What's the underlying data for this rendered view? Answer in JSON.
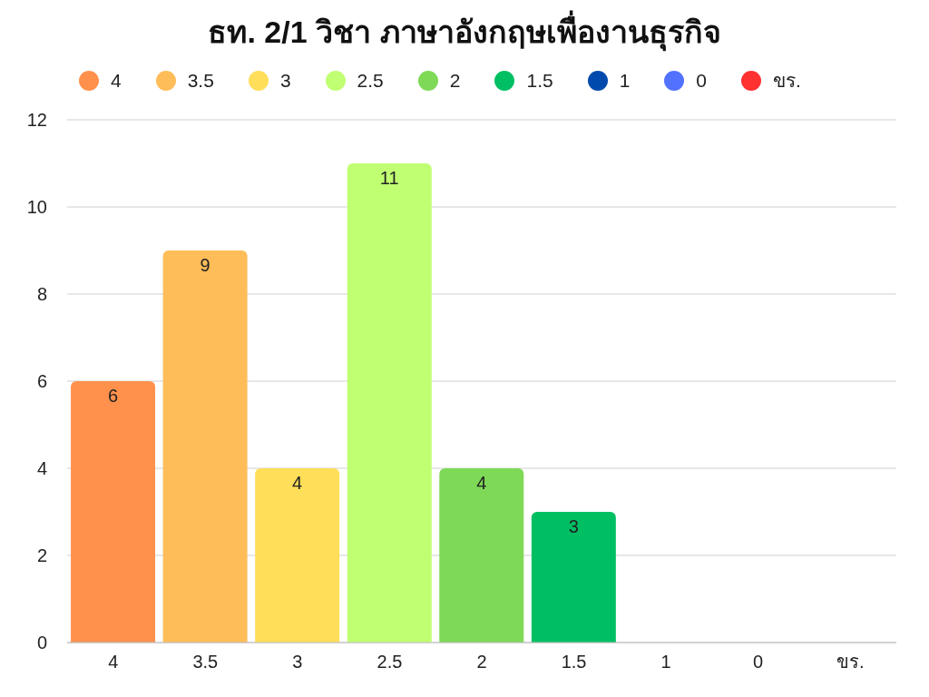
{
  "chart_data": {
    "type": "bar",
    "title": "ธท. 2/1 วิชา ภาษาอังกฤษเพื่องานธุรกิจ",
    "categories": [
      "4",
      "3.5",
      "3",
      "2.5",
      "2",
      "1.5",
      "1",
      "0",
      "ขร."
    ],
    "stacked": true,
    "series": [
      {
        "name": "4",
        "color": "#ff914d",
        "values": [
          6,
          null,
          null,
          null,
          null,
          null,
          null,
          null,
          null
        ],
        "value_labels": [
          "6",
          null,
          null,
          null,
          null,
          null,
          null,
          null,
          null
        ]
      },
      {
        "name": "3.5",
        "color": "#ffbd59",
        "values": [
          null,
          9,
          null,
          null,
          null,
          null,
          null,
          null,
          null
        ],
        "value_labels": [
          null,
          "9",
          null,
          null,
          null,
          null,
          null,
          null,
          null
        ]
      },
      {
        "name": "3",
        "color": "#ffde59",
        "values": [
          null,
          null,
          4,
          null,
          null,
          null,
          null,
          null,
          null
        ],
        "value_labels": [
          null,
          null,
          "4",
          null,
          null,
          null,
          null,
          null,
          null
        ]
      },
      {
        "name": "2.5",
        "color": "#c1ff72",
        "values": [
          null,
          null,
          null,
          11,
          null,
          null,
          null,
          null,
          null
        ],
        "value_labels": [
          null,
          null,
          null,
          "11",
          null,
          null,
          null,
          null,
          null
        ]
      },
      {
        "name": "2",
        "color": "#7ed957",
        "values": [
          null,
          null,
          null,
          null,
          4,
          null,
          null,
          null,
          null
        ],
        "value_labels": [
          null,
          null,
          null,
          null,
          "4",
          null,
          null,
          null,
          null
        ]
      },
      {
        "name": "1.5",
        "color": "#00bf63",
        "values": [
          null,
          null,
          null,
          null,
          null,
          3,
          null,
          null,
          null
        ],
        "value_labels": [
          null,
          null,
          null,
          null,
          null,
          "3",
          null,
          null,
          null
        ]
      },
      {
        "name": "1",
        "color": "#004aad",
        "values": [
          null,
          null,
          null,
          null,
          null,
          null,
          0,
          null,
          null
        ]
      },
      {
        "name": "0",
        "color": "#5271ff",
        "values": [
          null,
          null,
          null,
          null,
          null,
          null,
          null,
          0,
          null
        ]
      },
      {
        "name": "ขร.",
        "color": "#ff3131",
        "values": [
          null,
          null,
          null,
          null,
          null,
          null,
          null,
          null,
          0
        ]
      }
    ],
    "ylim": [
      0,
      12
    ],
    "yticks": [
      0,
      2,
      4,
      6,
      8,
      10,
      12
    ],
    "grid": "y",
    "legend": "top"
  }
}
